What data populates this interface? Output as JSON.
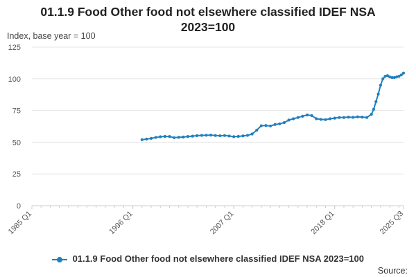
{
  "colors": {
    "series": "#1f7fbf",
    "grid": "#e6e6e6",
    "axis": "#cccccc"
  },
  "title_lines": [
    "01.1.9 Food Other food not elsewhere classified IDEF NSA",
    "2023=100"
  ],
  "unit_label": "Index, base year = 100",
  "legend_label": "01.1.9 Food Other food not elsewhere classified IDEF NSA 2023=100",
  "source_label": "Source:",
  "chart_data": {
    "type": "line",
    "title": "01.1.9 Food Other food not elsewhere classified IDEF NSA 2023=100",
    "ylabel": "Index, base year = 100",
    "xlabel": "",
    "ylim": [
      0,
      125
    ],
    "yticks": [
      0,
      25,
      50,
      75,
      100,
      125
    ],
    "x_range": [
      "1985 Q1",
      "2025 Q3"
    ],
    "xticks": [
      "1985 Q1",
      "1996 Q1",
      "2007 Q1",
      "2018 Q1",
      "2025 Q3"
    ],
    "grid": true,
    "legend_position": "bottom",
    "series": [
      {
        "name": "01.1.9 Food Other food not elsewhere classified IDEF NSA 2023=100",
        "marker": "circle",
        "points": [
          [
            "1997 Q1",
            52.0
          ],
          [
            "1997 Q3",
            52.5
          ],
          [
            "1998 Q1",
            53.0
          ],
          [
            "1998 Q3",
            53.8
          ],
          [
            "1999 Q1",
            54.3
          ],
          [
            "1999 Q3",
            54.6
          ],
          [
            "2000 Q1",
            54.5
          ],
          [
            "2000 Q3",
            53.6
          ],
          [
            "2001 Q1",
            53.9
          ],
          [
            "2001 Q3",
            54.1
          ],
          [
            "2002 Q1",
            54.5
          ],
          [
            "2002 Q3",
            54.8
          ],
          [
            "2003 Q1",
            55.2
          ],
          [
            "2003 Q3",
            55.4
          ],
          [
            "2004 Q1",
            55.5
          ],
          [
            "2004 Q3",
            55.6
          ],
          [
            "2005 Q1",
            55.3
          ],
          [
            "2005 Q3",
            55.1
          ],
          [
            "2006 Q1",
            55.3
          ],
          [
            "2006 Q3",
            54.9
          ],
          [
            "2007 Q1",
            54.4
          ],
          [
            "2007 Q3",
            54.6
          ],
          [
            "2008 Q1",
            55.0
          ],
          [
            "2008 Q3",
            55.4
          ],
          [
            "2009 Q1",
            56.5
          ],
          [
            "2009 Q3",
            59.5
          ],
          [
            "2010 Q1",
            63.0
          ],
          [
            "2010 Q3",
            63.2
          ],
          [
            "2011 Q1",
            62.8
          ],
          [
            "2011 Q3",
            64.0
          ],
          [
            "2012 Q1",
            64.5
          ],
          [
            "2012 Q3",
            65.5
          ],
          [
            "2013 Q1",
            67.5
          ],
          [
            "2013 Q3",
            68.5
          ],
          [
            "2014 Q1",
            69.5
          ],
          [
            "2014 Q3",
            70.5
          ],
          [
            "2015 Q1",
            71.5
          ],
          [
            "2015 Q3",
            71.0
          ],
          [
            "2016 Q1",
            68.5
          ],
          [
            "2016 Q3",
            68.0
          ],
          [
            "2017 Q1",
            67.8
          ],
          [
            "2017 Q3",
            68.5
          ],
          [
            "2018 Q1",
            69.0
          ],
          [
            "2018 Q3",
            69.5
          ],
          [
            "2019 Q1",
            69.5
          ],
          [
            "2019 Q3",
            69.8
          ],
          [
            "2020 Q1",
            69.6
          ],
          [
            "2020 Q3",
            70.0
          ],
          [
            "2021 Q1",
            69.8
          ],
          [
            "2021 Q3",
            69.5
          ],
          [
            "2022 Q1",
            72.0
          ],
          [
            "2022 Q2",
            76.0
          ],
          [
            "2022 Q3",
            82.0
          ],
          [
            "2022 Q4",
            88.0
          ],
          [
            "2023 Q1",
            95.0
          ],
          [
            "2023 Q2",
            100.0
          ],
          [
            "2023 Q3",
            102.0
          ],
          [
            "2023 Q4",
            102.5
          ],
          [
            "2024 Q1",
            101.5
          ],
          [
            "2024 Q2",
            101.0
          ],
          [
            "2024 Q3",
            101.0
          ],
          [
            "2024 Q4",
            101.5
          ],
          [
            "2025 Q1",
            102.0
          ],
          [
            "2025 Q2",
            103.0
          ],
          [
            "2025 Q3",
            104.5
          ]
        ]
      }
    ]
  }
}
